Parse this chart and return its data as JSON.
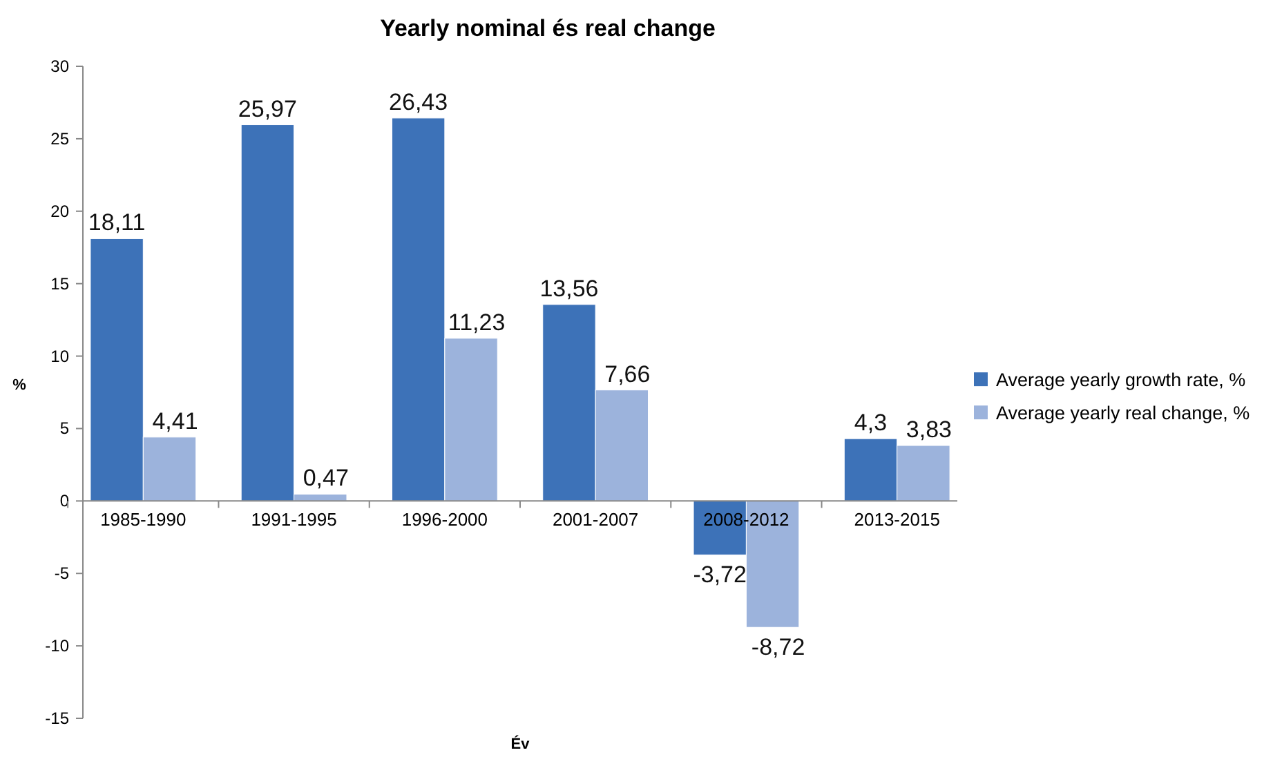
{
  "chart_data": {
    "type": "bar",
    "title": "Yearly nominal és real change",
    "xlabel": "Év",
    "ylabel": "%",
    "categories": [
      "1985-1990",
      "1991-1995",
      "1996-2000",
      "2001-2007",
      "2008-2012",
      "2013-2015"
    ],
    "series": [
      {
        "name": "Average yearly growth rate, %",
        "color": "#3d72b8",
        "values": [
          18.11,
          25.97,
          26.43,
          13.56,
          -3.72,
          4.3
        ],
        "value_labels": [
          "18,11",
          "25,97",
          "26,43",
          "13,56",
          "-3,72",
          "4,3"
        ]
      },
      {
        "name": "Average yearly real change, %",
        "color": "#9cb3dc",
        "values": [
          4.41,
          0.47,
          11.23,
          7.66,
          -8.72,
          3.83
        ],
        "value_labels": [
          "4,41",
          "0,47",
          "11,23",
          "7,66",
          "-8,72",
          "3,83"
        ]
      }
    ],
    "ylim": [
      -15,
      30
    ],
    "yticks": [
      -15,
      -10,
      -5,
      0,
      5,
      10,
      15,
      20,
      25,
      30
    ],
    "grid": false,
    "legend": "right"
  }
}
